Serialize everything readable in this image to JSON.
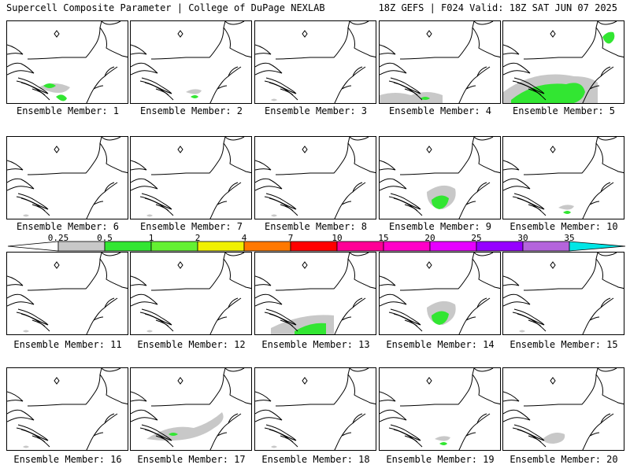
{
  "header": {
    "left_title": "Supercell Composite Parameter | College of DuPage NEXLAB",
    "right_title": "18Z GEFS | F024 Valid: 18Z SAT JUN 07 2025"
  },
  "panel_label_prefix": "Ensemble Member: ",
  "members": [
    {
      "label": "Ensemble Member: 1",
      "coverage": "green-south"
    },
    {
      "label": "Ensemble Member: 2",
      "coverage": "light-south"
    },
    {
      "label": "Ensemble Member: 3",
      "coverage": "minimal"
    },
    {
      "label": "Ensemble Member: 4",
      "coverage": "gray-south"
    },
    {
      "label": "Ensemble Member: 5",
      "coverage": "green-widespread"
    },
    {
      "label": "Ensemble Member: 6",
      "coverage": "minimal"
    },
    {
      "label": "Ensemble Member: 7",
      "coverage": "minimal"
    },
    {
      "label": "Ensemble Member: 8",
      "coverage": "minimal"
    },
    {
      "label": "Ensemble Member: 9",
      "coverage": "green-mid"
    },
    {
      "label": "Ensemble Member: 10",
      "coverage": "light-south"
    },
    {
      "label": "Ensemble Member: 11",
      "coverage": "minimal"
    },
    {
      "label": "Ensemble Member: 12",
      "coverage": "minimal"
    },
    {
      "label": "Ensemble Member: 13",
      "coverage": "green-coast"
    },
    {
      "label": "Ensemble Member: 14",
      "coverage": "green-mid"
    },
    {
      "label": "Ensemble Member: 15",
      "coverage": "minimal"
    },
    {
      "label": "Ensemble Member: 16",
      "coverage": "minimal"
    },
    {
      "label": "Ensemble Member: 17",
      "coverage": "gray-wide"
    },
    {
      "label": "Ensemble Member: 18",
      "coverage": "minimal"
    },
    {
      "label": "Ensemble Member: 19",
      "coverage": "light-south"
    },
    {
      "label": "Ensemble Member: 20",
      "coverage": "gray-patch"
    }
  ],
  "colorbar": {
    "ticks": [
      "0.25",
      "0.5",
      "1",
      "2",
      "4",
      "7",
      "10",
      "15",
      "20",
      "25",
      "30",
      "35"
    ],
    "colors": [
      "#c8c8c8",
      "#32e632",
      "#64f032",
      "#f0f000",
      "#ff7800",
      "#ff0000",
      "#ff0096",
      "#ff00c8",
      "#e600ff",
      "#9600ff",
      "#b464dc",
      "#00e6e6"
    ]
  }
}
